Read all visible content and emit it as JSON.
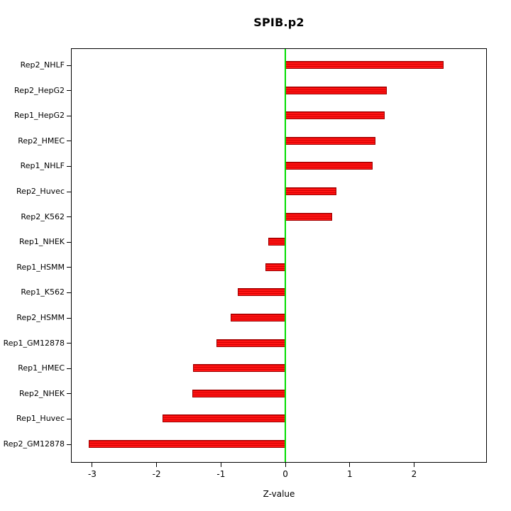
{
  "chart_data": {
    "type": "bar",
    "orientation": "horizontal",
    "title": "SPIB.p2",
    "xlabel": "Z-value",
    "categories": [
      "Rep2_NHLF",
      "Rep2_HepG2",
      "Rep1_HepG2",
      "Rep2_HMEC",
      "Rep1_NHLF",
      "Rep2_Huvec",
      "Rep2_K562",
      "Rep1_NHEK",
      "Rep1_HSMM",
      "Rep1_K562",
      "Rep2_HSMM",
      "Rep1_GM12878",
      "Rep1_HMEC",
      "Rep2_NHEK",
      "Rep1_Huvec",
      "Rep2_GM12878"
    ],
    "values": [
      2.46,
      1.58,
      1.54,
      1.4,
      1.35,
      0.79,
      0.73,
      -0.27,
      -0.31,
      -0.74,
      -0.85,
      -1.07,
      -1.43,
      -1.45,
      -1.91,
      -3.05
    ],
    "xticks": [
      -3,
      -2,
      -1,
      0,
      1,
      2
    ],
    "xlim": [
      -3.33,
      3.13
    ],
    "bar_color": "#ff0000",
    "bar_stripe_color": "#d40000",
    "bar_border_color": "#9b0000",
    "zero_line_color": "#00dd00",
    "grid": false,
    "legend": false
  }
}
